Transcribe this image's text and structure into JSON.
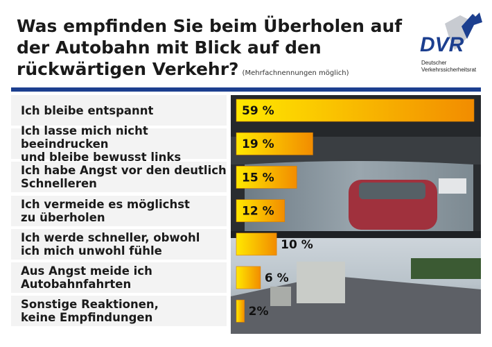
{
  "title": "Was empfinden Sie beim Überholen auf der Autobahn mit Blick auf den rückwärtigen Verkehr?",
  "title_note": "(Mehrfachnennungen möglich)",
  "logo": {
    "text": "DVR",
    "caption_line1": "Deutscher",
    "caption_line2": "Verkehrssicherheitsrat",
    "color": "#1c3f8f"
  },
  "colors": {
    "rule": "#1c3f8f",
    "bar_start": "#ffe800",
    "bar_end": "#f28c00",
    "label_bg": "#f3f3f3"
  },
  "chart_data": {
    "type": "bar",
    "orientation": "horizontal",
    "title": "Was empfinden Sie beim Überholen auf der Autobahn mit Blick auf den rückwärtigen Verkehr?",
    "categories": [
      "Ich bleibe entspannt",
      "Ich lasse mich nicht beeindrucken und bleibe bewusst links",
      "Ich habe Angst vor den deutlich Schnelleren",
      "Ich vermeide es möglichst zu überholen",
      "Ich werde schneller, obwohl ich mich unwohl fühle",
      "Aus Angst meide ich Autobahnfahrten",
      "Sonstige Reaktionen, keine Empfindungen"
    ],
    "category_display": [
      "Ich bleibe entspannt",
      "Ich lasse mich nicht beeindrucken\nund bleibe bewusst links",
      "Ich habe Angst vor den deutlich\nSchnelleren",
      "Ich vermeide es möglichst\nzu überholen",
      "Ich werde schneller, obwohl\nich mich unwohl fühle",
      "Aus Angst meide ich\nAutobahnfahrten",
      "Sonstige Reaktionen,\nkeine Empfindungen"
    ],
    "values": [
      59,
      19,
      15,
      12,
      10,
      6,
      2
    ],
    "value_labels": [
      "59 %",
      "19 %",
      "15 %",
      "12 %",
      "10 %",
      "6 %",
      "2%"
    ],
    "unit": "%",
    "xlim": [
      0,
      59
    ],
    "grid": false,
    "legend": "none"
  }
}
